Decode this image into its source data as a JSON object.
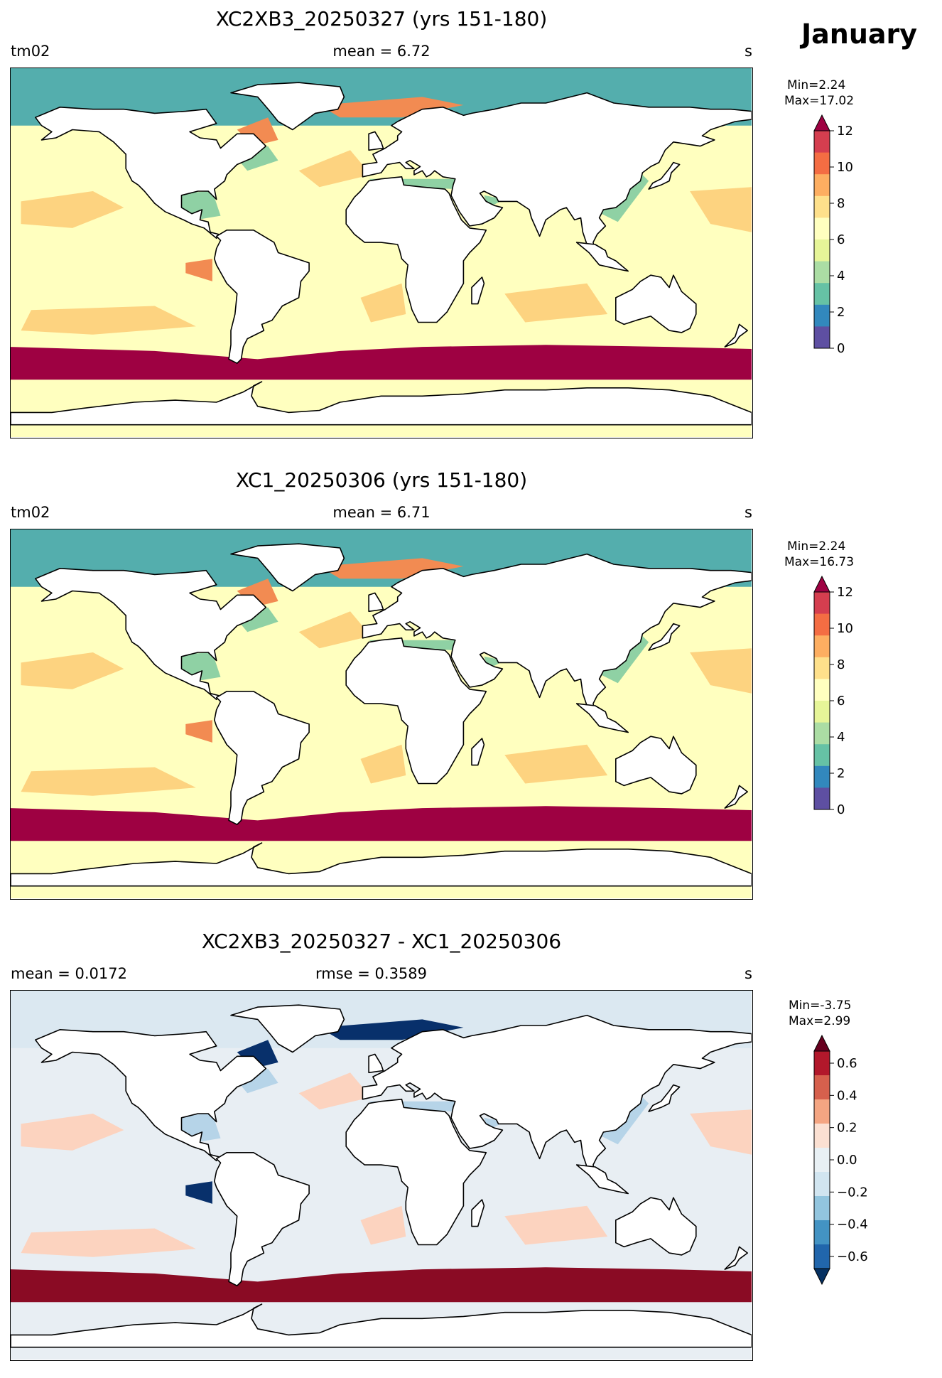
{
  "header": {
    "month": "January"
  },
  "panels": [
    {
      "title": "XC2XB3_20250327 (yrs 151-180)",
      "left_label": "tm02",
      "center_label": "mean = 6.72",
      "unit": "s",
      "min_label": "Min=2.24",
      "max_label": "Max=17.02",
      "colorbar_ticks": [
        "12",
        "10",
        "8",
        "6",
        "4",
        "2",
        "0"
      ],
      "colorbar_colors": [
        "#5e4fa2",
        "#3288bd",
        "#66c2a5",
        "#abdda4",
        "#e6f598",
        "#ffffbf",
        "#fee08b",
        "#fdae61",
        "#f46d43",
        "#d53e4f",
        "#9e0142"
      ],
      "colors": {
        "ocean": "#ffffbf",
        "arctic": "#54aead",
        "southern": "#9e0142",
        "warm": "#fdd380",
        "shelf": "#8fd1a4",
        "hot": "#f28b52"
      }
    },
    {
      "title": "XC1_20250306 (yrs 151-180)",
      "left_label": "tm02",
      "center_label": "mean = 6.71",
      "unit": "s",
      "min_label": "Min=2.24",
      "max_label": "Max=16.73",
      "colorbar_ticks": [
        "12",
        "10",
        "8",
        "6",
        "4",
        "2",
        "0"
      ],
      "colorbar_colors": [
        "#5e4fa2",
        "#3288bd",
        "#66c2a5",
        "#abdda4",
        "#e6f598",
        "#ffffbf",
        "#fee08b",
        "#fdae61",
        "#f46d43",
        "#d53e4f",
        "#9e0142"
      ],
      "colors": {
        "ocean": "#ffffbf",
        "arctic": "#54aead",
        "southern": "#9e0142",
        "warm": "#fdd380",
        "shelf": "#8fd1a4",
        "hot": "#f28b52"
      }
    },
    {
      "title": "XC2XB3_20250327 - XC1_20250306",
      "left_label": "mean = 0.0172",
      "center_label": "rmse = 0.3589",
      "unit": "s",
      "min_label": "Min=-3.75",
      "max_label": "Max=2.99",
      "colorbar_ticks": [
        "0.6",
        "0.4",
        "0.2",
        "0.0",
        "−0.2",
        "−0.4",
        "−0.6"
      ],
      "colorbar_colors": [
        "#053061",
        "#2166ac",
        "#4393c3",
        "#92c5de",
        "#d1e5f0",
        "#e8f0f4",
        "#fbe0d2",
        "#f4a582",
        "#d6604d",
        "#b2182b",
        "#67001f"
      ],
      "colors": {
        "ocean": "#e8eef3",
        "arctic": "#dbe8f1",
        "southern": "#8a0b24",
        "warm": "#fcd3bf",
        "shelf": "#b6d4e8",
        "hot": "#08306b"
      }
    }
  ]
}
